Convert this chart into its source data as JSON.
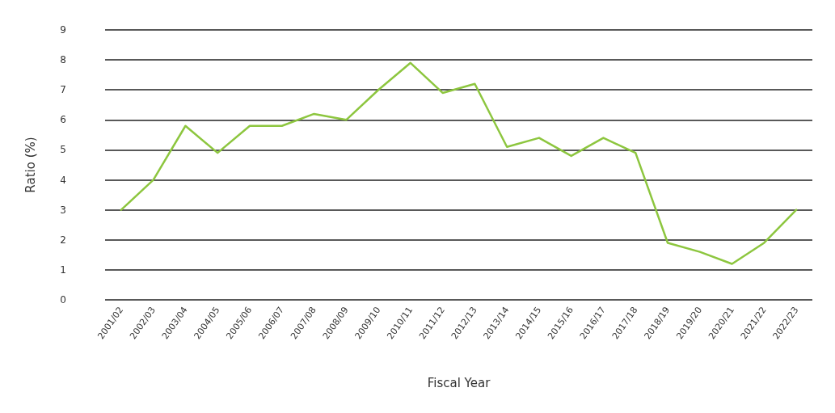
{
  "chart_data": {
    "type": "line",
    "xlabel": "Fiscal Year",
    "ylabel": "Ratio (%)",
    "categories": [
      "2001/02",
      "2002/03",
      "2003/04",
      "2004/05",
      "2005/06",
      "2006/07",
      "2007/08",
      "2008/09",
      "2009/10",
      "2010/11",
      "2011/12",
      "2012/13",
      "2013/14",
      "2014/15",
      "2015/16",
      "2016/17",
      "2017/18",
      "2018/19",
      "2019/20",
      "2020/21",
      "2021/22",
      "2022/23"
    ],
    "series": [
      {
        "color": "#8dc63f",
        "values": [
          3.0,
          4.0,
          5.8,
          4.9,
          5.8,
          5.8,
          6.2,
          6.0,
          7.0,
          7.9,
          6.9,
          7.2,
          5.1,
          5.4,
          4.8,
          5.4,
          4.9,
          1.9,
          1.6,
          1.2,
          1.9,
          3.0
        ]
      }
    ],
    "ylim": [
      0,
      9
    ],
    "yticks": [
      0,
      1,
      2,
      3,
      4,
      5,
      6,
      7,
      8,
      9
    ],
    "grid": "y",
    "marker": "none",
    "line_style": "solid"
  }
}
